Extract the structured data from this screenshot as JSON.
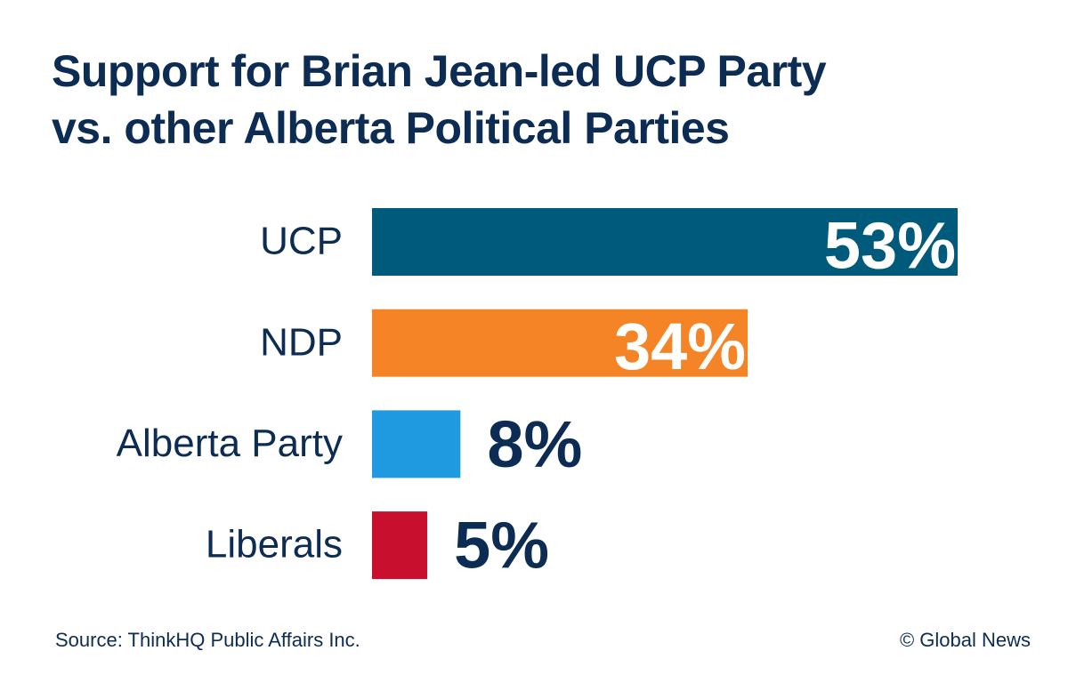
{
  "chart_data": {
    "type": "bar",
    "orientation": "horizontal",
    "title": "Support for Brian Jean-led UCP Party vs. other Alberta Political Parties",
    "categories": [
      "UCP",
      "NDP",
      "Alberta Party",
      "Liberals"
    ],
    "values": [
      53,
      34,
      8,
      5
    ],
    "value_labels": [
      "53%",
      "34%",
      "8%",
      "5%"
    ],
    "colors": [
      "#005a7b",
      "#f58426",
      "#1f9ae0",
      "#c8102e"
    ],
    "source": "Source: ThinkHQ Public Affairs Inc.",
    "credit": "© Global News"
  }
}
